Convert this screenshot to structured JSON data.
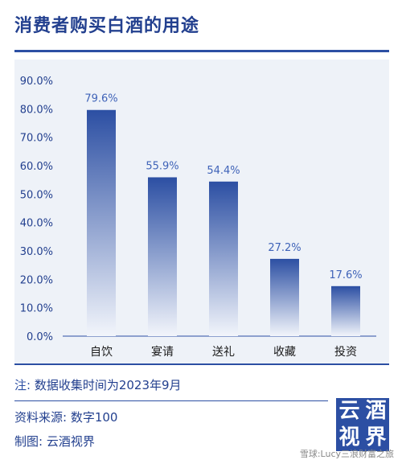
{
  "title": "消费者购买白酒的用途",
  "chart_data": {
    "type": "bar",
    "categories": [
      "自饮",
      "宴请",
      "送礼",
      "收藏",
      "投资"
    ],
    "values": [
      79.6,
      55.9,
      54.4,
      27.2,
      17.6
    ],
    "value_labels": [
      "79.6%",
      "55.9%",
      "54.4%",
      "27.2%",
      "17.6%"
    ],
    "yticks": [
      "0.0%",
      "10.0%",
      "20.0%",
      "30.0%",
      "40.0%",
      "50.0%",
      "60.0%",
      "70.0%",
      "80.0%",
      "90.0%"
    ],
    "ylim": [
      0,
      90
    ],
    "grid": false,
    "bar_color_top": "#2c4fa3",
    "bar_color_bottom": "#f2f5fb"
  },
  "note": {
    "prefix": "注:",
    "text": "数据收集时间为2023年9月"
  },
  "source": {
    "label": "资料来源:",
    "value": "数字100"
  },
  "credit": {
    "label": "制图:",
    "value": "云酒视界"
  },
  "logo": {
    "chars": [
      "云",
      "酒",
      "视",
      "界"
    ]
  },
  "footer": "雪球:Lucy三浪财富之旅"
}
